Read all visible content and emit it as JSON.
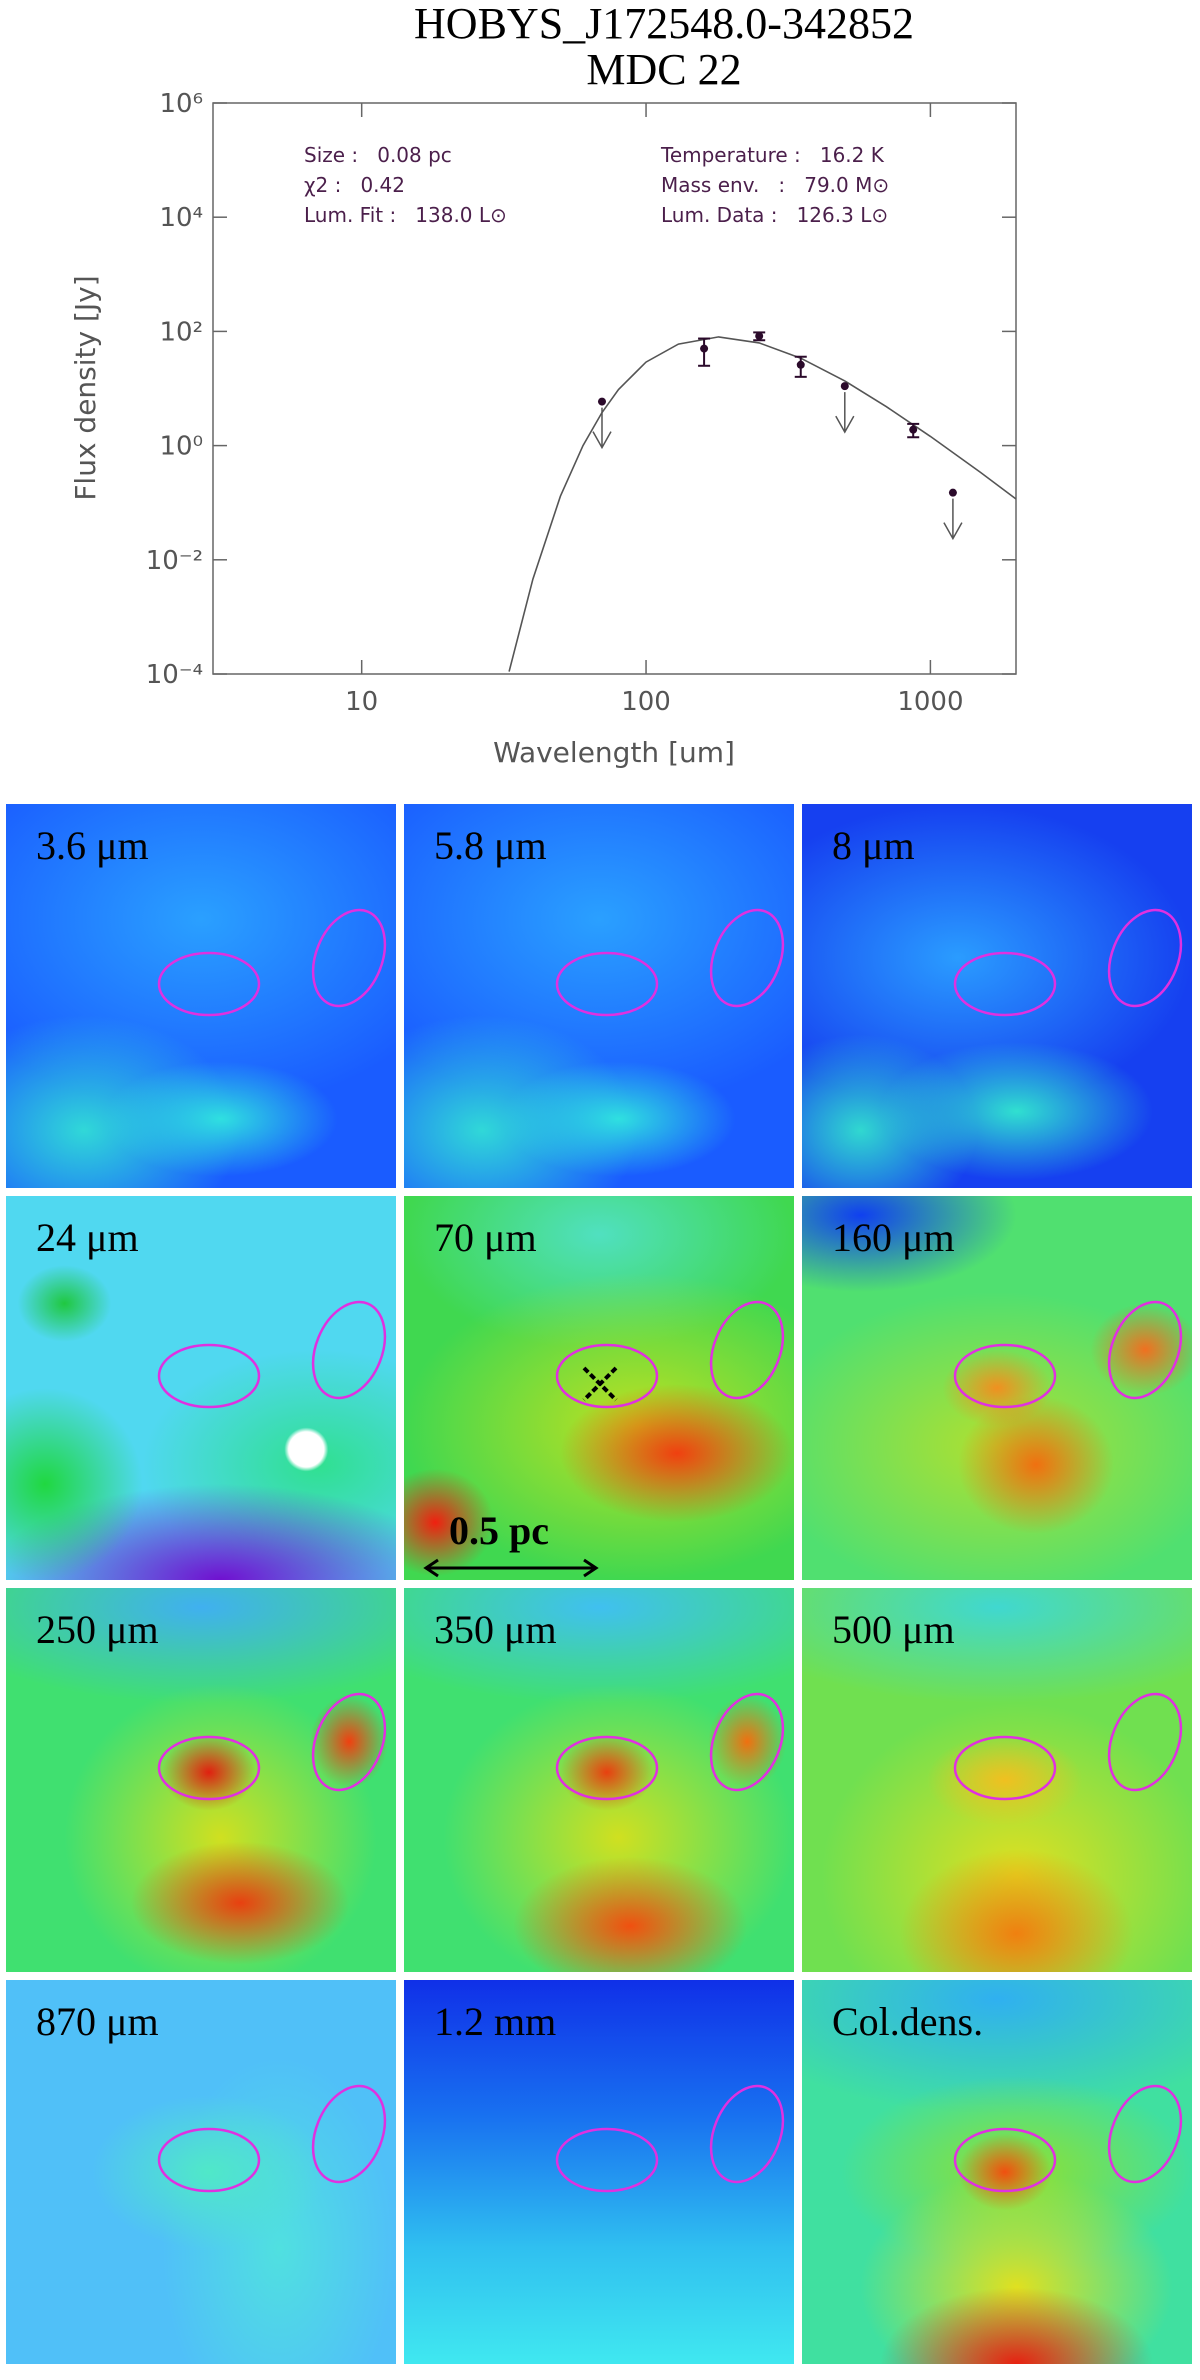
{
  "chart_data": {
    "type": "scatter",
    "title": "HOBYS_J172548.0-342852",
    "subtitle": "MDC 22",
    "x_label": "Wavelength [um]",
    "y_label": "Flux density [Jy]",
    "log_x": true,
    "log_y": true,
    "xlim": [
      3,
      2000
    ],
    "xticks": [
      10,
      100,
      1000
    ],
    "ylim": [
      0.0001,
      1000000
    ],
    "yticks": [
      {
        "value": 0.0001,
        "label": "10⁻⁴"
      },
      {
        "value": 0.01,
        "label": "10⁻²"
      },
      {
        "value": 1,
        "label": "10⁰"
      },
      {
        "value": 100,
        "label": "10²"
      },
      {
        "value": 10000,
        "label": "10⁴"
      },
      {
        "value": 1000000,
        "label": "10⁶"
      }
    ],
    "annotations_left": [
      "Size :   0.08 pc",
      "χ2 :   0.42",
      "Lum. Fit :   138.0 L⊙"
    ],
    "annotations_right": [
      "Temperature :   16.2 K",
      "Mass env.   :   79.0 M⊙",
      "Lum. Data :   126.3 L⊙"
    ],
    "points": {
      "color": "#2b0a2b",
      "x": [
        70,
        160,
        250,
        350,
        500,
        870,
        1200
      ],
      "values": [
        5.9,
        50,
        83,
        26,
        11,
        1.9,
        0.15
      ],
      "errors": [
        null,
        25,
        13,
        10,
        null,
        0.5,
        null
      ],
      "upper_limits": [
        true,
        false,
        false,
        false,
        true,
        false,
        true
      ]
    },
    "fit": {
      "color": "#555555",
      "x": [
        33,
        40,
        50,
        60,
        70,
        80,
        100,
        130,
        180,
        250,
        350,
        500,
        700,
        1000,
        1500,
        2000
      ],
      "values": [
        0.00011,
        0.0046,
        0.13,
        1.0,
        3.8,
        9.6,
        29,
        60,
        80,
        63,
        34,
        13.6,
        4.8,
        1.45,
        0.34,
        0.116
      ]
    }
  },
  "panels": [
    {
      "label": "3.6 μm"
    },
    {
      "label": "5.8 μm"
    },
    {
      "label": "8 μm"
    },
    {
      "label": "24 μm"
    },
    {
      "label": "70 μm"
    },
    {
      "label": "160 μm"
    },
    {
      "label": "250 μm"
    },
    {
      "label": "350 μm"
    },
    {
      "label": "500 μm"
    },
    {
      "label": "870 μm"
    },
    {
      "label": "1.2 mm"
    },
    {
      "label": "Col.dens."
    }
  ],
  "scale_bar": "0.5 pc"
}
